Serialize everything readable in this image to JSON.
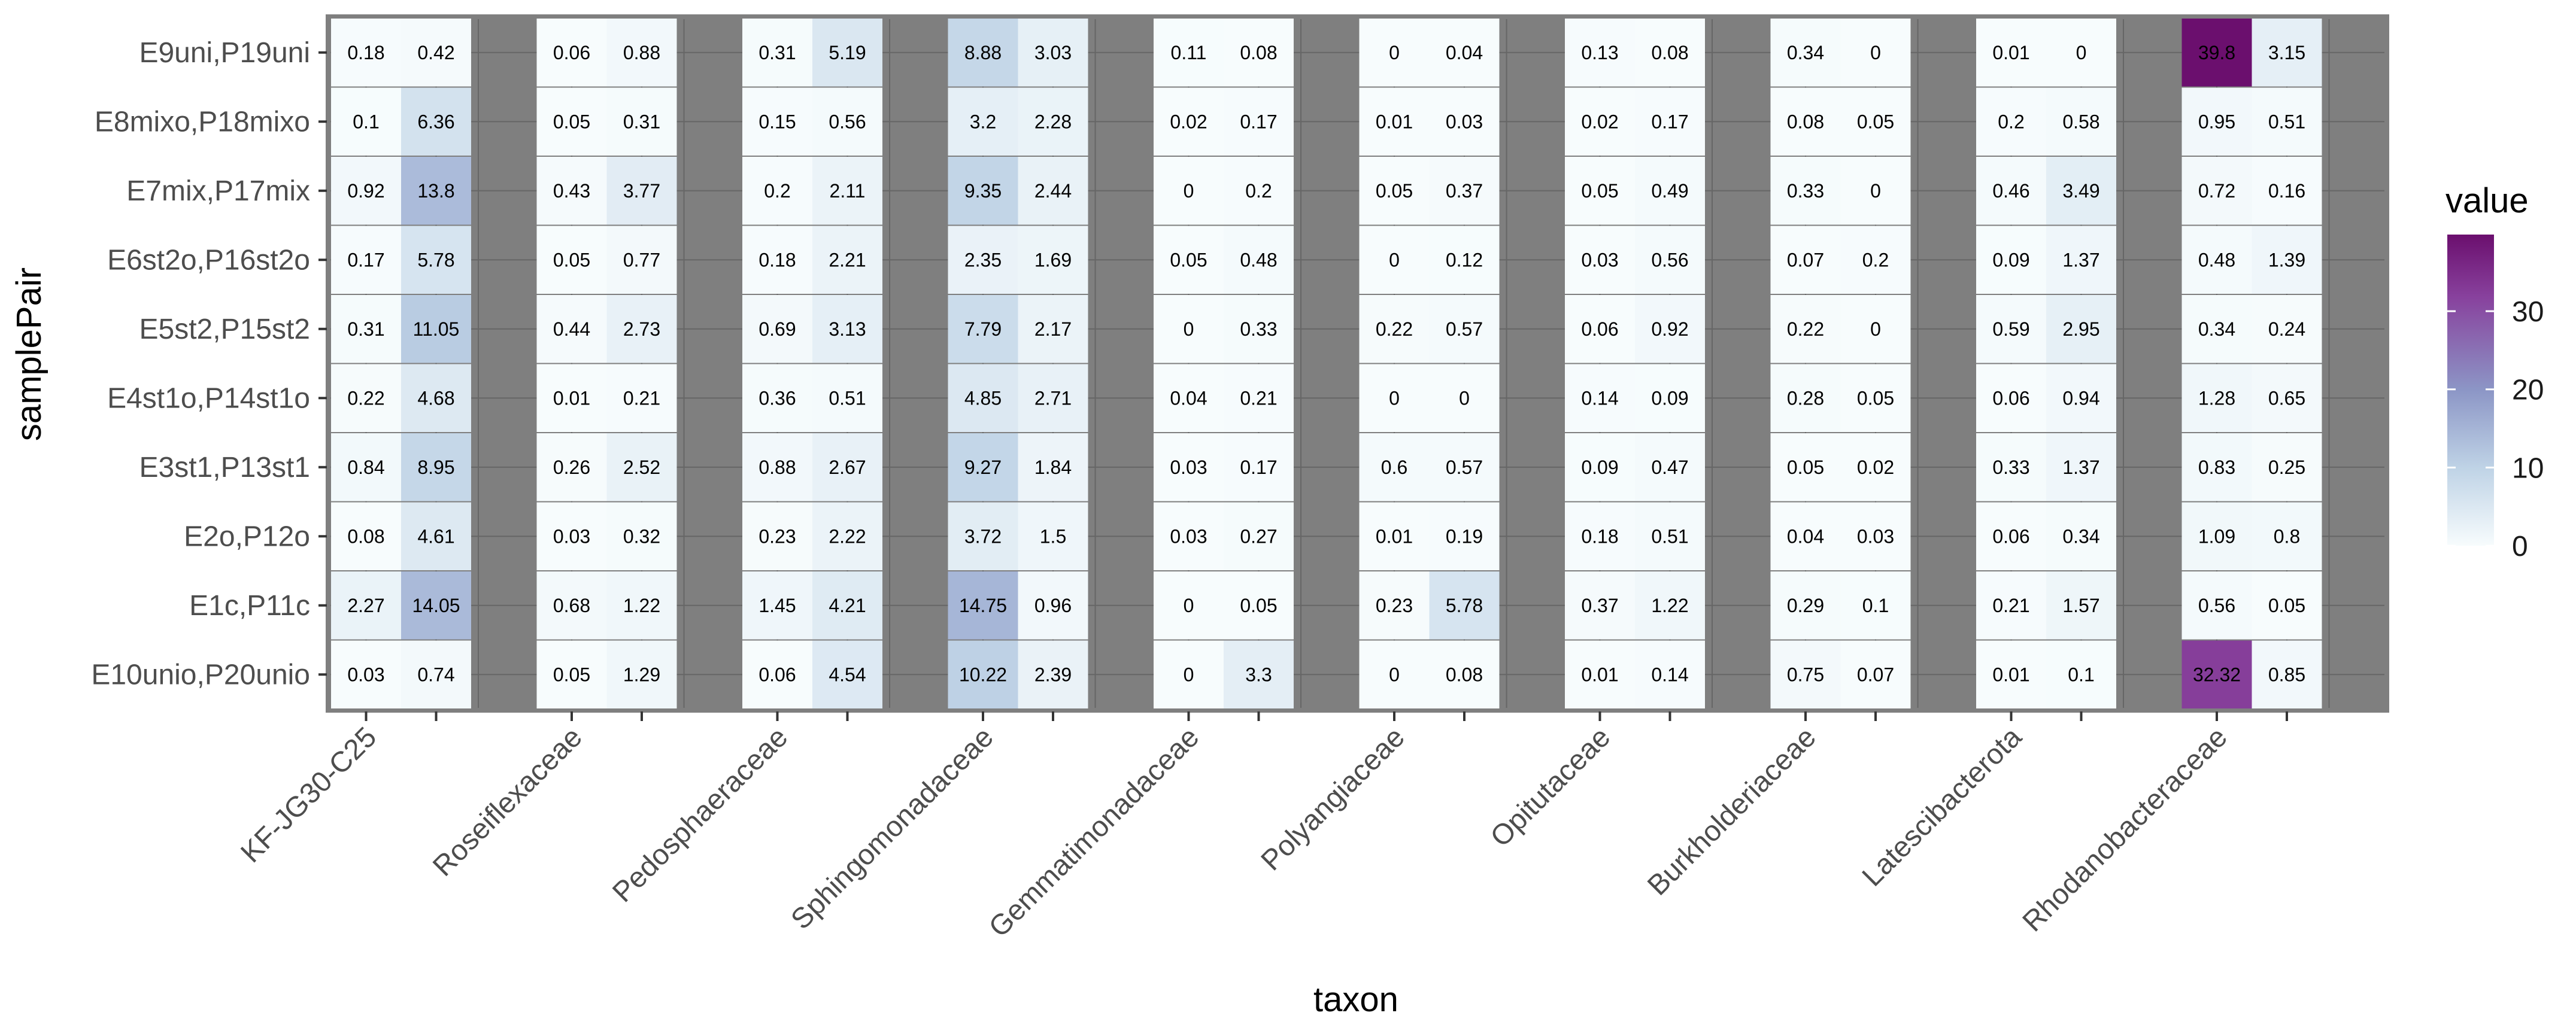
{
  "chart_data": {
    "type": "heatmap",
    "title": "",
    "xlabel": "taxon",
    "ylabel": "samplePair",
    "x_categories": [
      "KF-JG30-C25",
      "Roseiflexaceae",
      "Pedosphaeraceae",
      "Sphingomonadaceae",
      "Gemmatimonadaceae",
      "Polyangiaceae",
      "Opitutaceae",
      "Burkholderiaceae",
      "Latescibacterota",
      "Rhodanobacteraceae"
    ],
    "y_categories": [
      "E9uni,P19uni",
      "E8mixo,P18mixo",
      "E7mix,P17mix",
      "E6st2o,P16st2o",
      "E5st2,P15st2",
      "E4st1o,P14st1o",
      "E3st1,P13st1",
      "E2o,P12o",
      "E1c,P11c",
      "E10unio,P20unio"
    ],
    "subcolumns": 2,
    "values": [
      [
        0.18,
        0.42,
        0.06,
        0.88,
        0.31,
        5.19,
        8.88,
        3.03,
        0.11,
        0.08,
        0,
        0.04,
        0.13,
        0.08,
        0.34,
        0,
        0.01,
        0,
        39.8,
        3.15
      ],
      [
        0.1,
        6.36,
        0.05,
        0.31,
        0.15,
        0.56,
        3.2,
        2.28,
        0.02,
        0.17,
        0.01,
        0.03,
        0.02,
        0.17,
        0.08,
        0.05,
        0.2,
        0.58,
        0.95,
        0.51
      ],
      [
        0.92,
        13.8,
        0.43,
        3.77,
        0.2,
        2.11,
        9.35,
        2.44,
        0,
        0.2,
        0.05,
        0.37,
        0.05,
        0.49,
        0.33,
        0,
        0.46,
        3.49,
        0.72,
        0.16
      ],
      [
        0.17,
        5.78,
        0.05,
        0.77,
        0.18,
        2.21,
        2.35,
        1.69,
        0.05,
        0.48,
        0,
        0.12,
        0.03,
        0.56,
        0.07,
        0.2,
        0.09,
        1.37,
        0.48,
        1.39
      ],
      [
        0.31,
        11.05,
        0.44,
        2.73,
        0.69,
        3.13,
        7.79,
        2.17,
        0,
        0.33,
        0.22,
        0.57,
        0.06,
        0.92,
        0.22,
        0,
        0.59,
        2.95,
        0.34,
        0.24
      ],
      [
        0.22,
        4.68,
        0.01,
        0.21,
        0.36,
        0.51,
        4.85,
        2.71,
        0.04,
        0.21,
        0,
        0,
        0.14,
        0.09,
        0.28,
        0.05,
        0.06,
        0.94,
        1.28,
        0.65
      ],
      [
        0.84,
        8.95,
        0.26,
        2.52,
        0.88,
        2.67,
        9.27,
        1.84,
        0.03,
        0.17,
        0.6,
        0.57,
        0.09,
        0.47,
        0.05,
        0.02,
        0.33,
        1.37,
        0.83,
        0.25
      ],
      [
        0.08,
        4.61,
        0.03,
        0.32,
        0.23,
        2.22,
        3.72,
        1.5,
        0.03,
        0.27,
        0.01,
        0.19,
        0.18,
        0.51,
        0.04,
        0.03,
        0.06,
        0.34,
        1.09,
        0.8
      ],
      [
        2.27,
        14.05,
        0.68,
        1.22,
        1.45,
        4.21,
        14.75,
        0.96,
        0,
        0.05,
        0.23,
        5.78,
        0.37,
        1.22,
        0.29,
        0.1,
        0.21,
        1.57,
        0.56,
        0.05
      ],
      [
        0.03,
        0.74,
        0.05,
        1.29,
        0.06,
        4.54,
        10.22,
        2.39,
        0,
        3.3,
        0,
        0.08,
        0.01,
        0.14,
        0.75,
        0.07,
        0.01,
        0.1,
        32.32,
        0.85
      ]
    ],
    "legend": {
      "title": "value",
      "ticks": [
        0,
        10,
        20,
        30
      ],
      "range": [
        0,
        39.8
      ],
      "position": "right"
    },
    "colors": {
      "panel_background": "#7f7f7f",
      "gridline": "#666666",
      "low": "#f7fcfd",
      "mid_low": "#bfd3e6",
      "mid": "#8c96c6",
      "mid_high": "#88419d",
      "high": "#6b0f6e"
    }
  }
}
